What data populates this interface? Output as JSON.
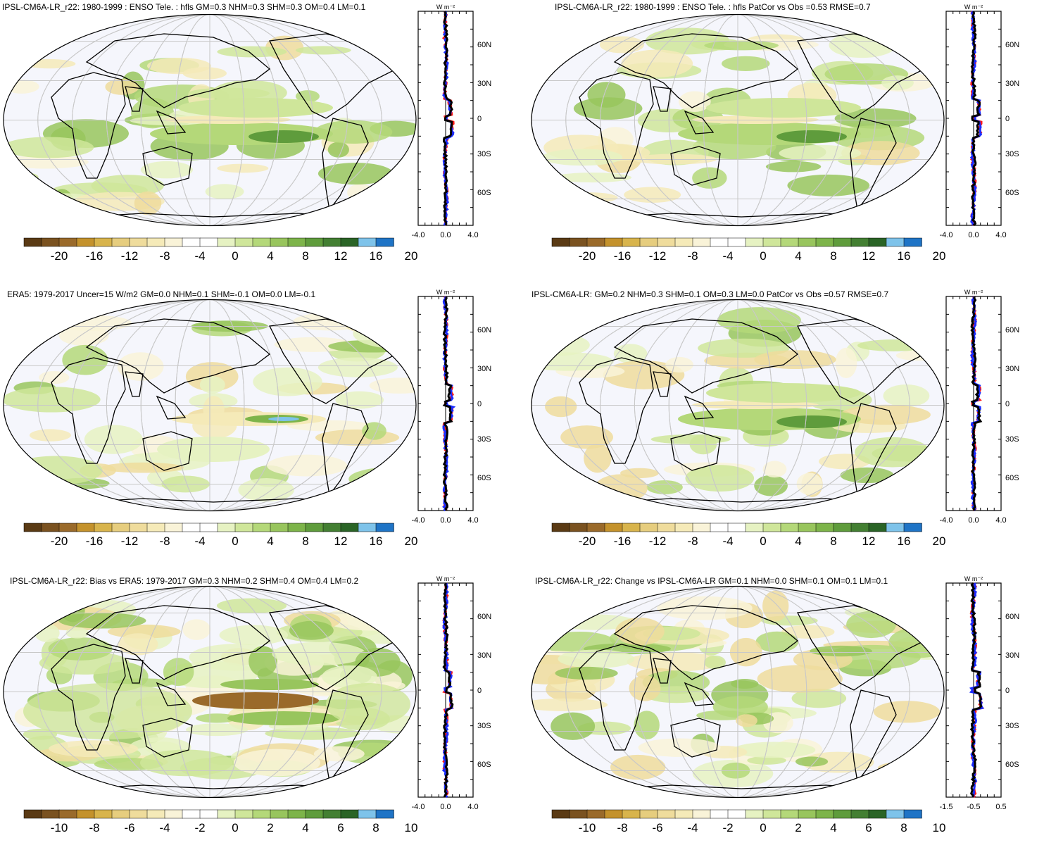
{
  "panels": [
    {
      "title": "IPSL-CM6A-LR_r22: 1980-1999 : ENSO Tele. : hfls GM=0.3 NHM=0.3 SHM=0.3 OM=0.4 LM=0.1",
      "colorbar_labels": [
        "-20",
        "-16",
        "-12",
        "-8",
        "-4",
        "0",
        "4",
        "8",
        "12",
        "16",
        "20"
      ],
      "profile_xticks": [
        "-4.0",
        "0.0",
        "4.0"
      ]
    },
    {
      "title": "IPSL-CM6A-LR_r22: 1980-1999 : ENSO Tele. : hfls PatCor vs Obs =0.53 RMSE=0.7",
      "colorbar_labels": [
        "-20",
        "-16",
        "-12",
        "-8",
        "-4",
        "0",
        "4",
        "8",
        "12",
        "16",
        "20"
      ],
      "profile_xticks": [
        "-4.0",
        "0.0",
        "4.0"
      ]
    },
    {
      "title": "ERA5: 1979-2017 Uncer=15 W/m2 GM=0.0 NHM=0.1 SHM=-0.1 OM=0.0 LM=-0.1",
      "colorbar_labels": [
        "-20",
        "-16",
        "-12",
        "-8",
        "-4",
        "0",
        "4",
        "8",
        "12",
        "16",
        "20"
      ],
      "profile_xticks": [
        "-4.0",
        "0.0",
        "4.0"
      ]
    },
    {
      "title": "IPSL-CM6A-LR: GM=0.2 NHM=0.3 SHM=0.1 OM=0.3 LM=0.0 PatCor vs Obs =0.57 RMSE=0.7",
      "colorbar_labels": [
        "-20",
        "-16",
        "-12",
        "-8",
        "-4",
        "0",
        "4",
        "8",
        "12",
        "16",
        "20"
      ],
      "profile_xticks": [
        "-4.0",
        "0.0",
        "4.0"
      ]
    },
    {
      "title": "IPSL-CM6A-LR_r22: Bias vs ERA5: 1979-2017 GM=0.3 NHM=0.2 SHM=0.4 OM=0.4 LM=0.2",
      "colorbar_labels": [
        "-10",
        "-8",
        "-6",
        "-4",
        "-2",
        "0",
        "2",
        "4",
        "6",
        "8",
        "10"
      ],
      "profile_xticks": [
        "-4.0",
        "0.0",
        "4.0"
      ]
    },
    {
      "title": "IPSL-CM6A-LR_r22: Change vs IPSL-CM6A-LR GM=0.1 NHM=0.0 SHM=0.1 OM=0.1 LM=0.1",
      "colorbar_labels": [
        "-10",
        "-8",
        "-6",
        "-4",
        "-2",
        "0",
        "2",
        "4",
        "6",
        "8",
        "10"
      ],
      "profile_xticks": [
        "-1.5",
        "-0.5",
        "0.5"
      ]
    }
  ],
  "profile_unit": "W m⁻²",
  "latitude_ticks": [
    "60N",
    "30N",
    "0",
    "30S",
    "60S"
  ],
  "colors": {
    "palette": [
      "#5a3a14",
      "#7a5220",
      "#9a6a2a",
      "#c4922c",
      "#d8b44c",
      "#e6cd7e",
      "#efdc9c",
      "#f5eab8",
      "#f9f3d8",
      "#ffffff",
      "#ffffff",
      "#e6f2c2",
      "#cfe69a",
      "#b4d879",
      "#98c55d",
      "#7db44a",
      "#5f9c3c",
      "#437f32",
      "#2a6426",
      "#7ec3ea",
      "#1f74c6"
    ],
    "ocean": "#f5f6fc",
    "profile_red": "#ff1a1a",
    "profile_blue": "#1a2cff",
    "profile_black": "#000000"
  }
}
